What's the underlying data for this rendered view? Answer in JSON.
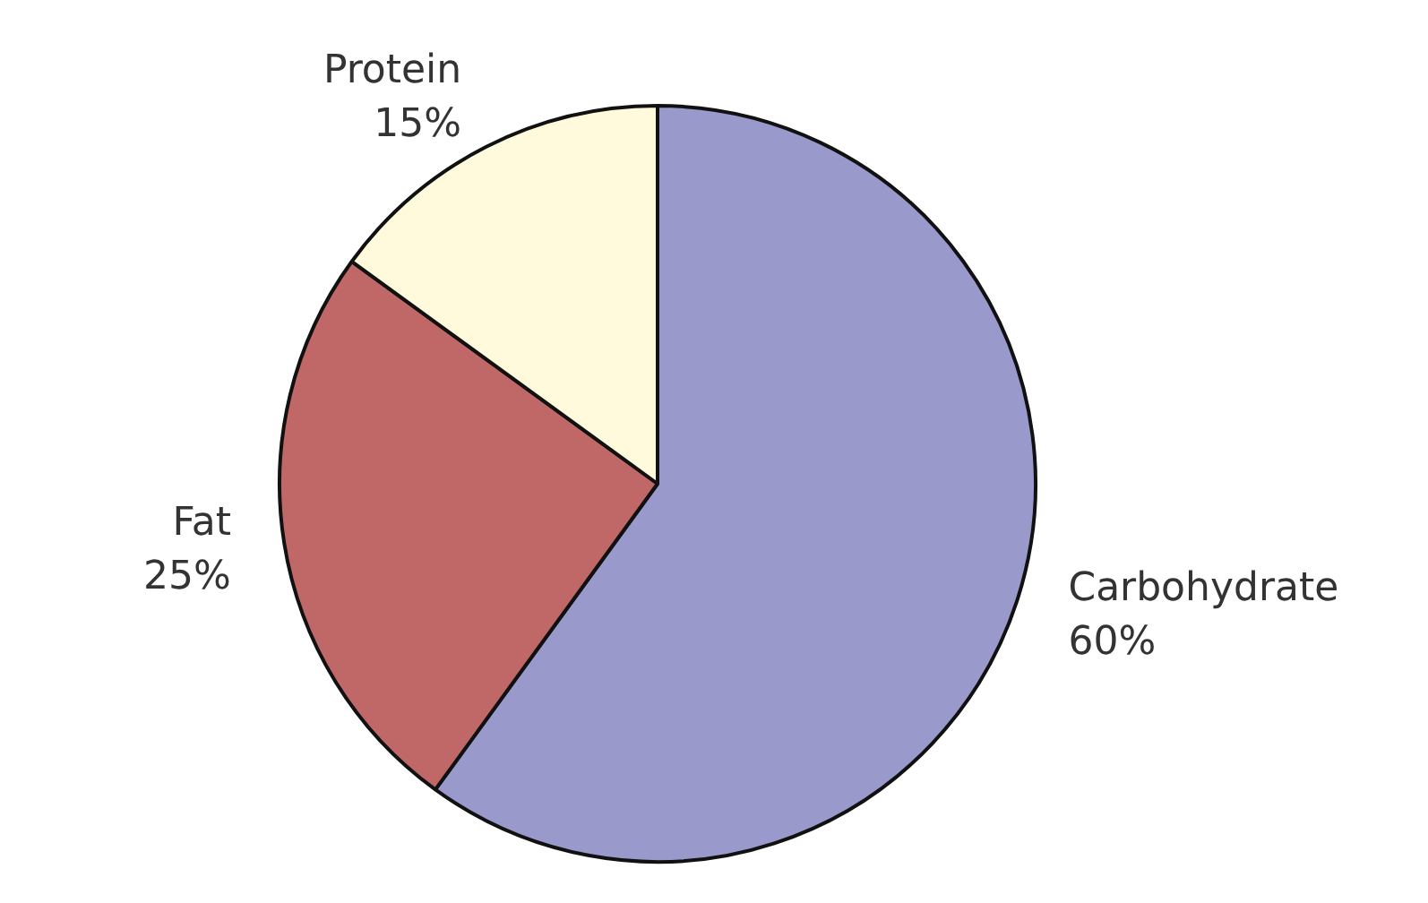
{
  "chart_data": {
    "type": "pie",
    "categories": [
      "Carbohydrate",
      "Fat",
      "Protein"
    ],
    "values": [
      60,
      25,
      15
    ],
    "value_labels": [
      "60%",
      "25%",
      "15%"
    ],
    "colors": [
      "#9999cc",
      "#c06868",
      "#fffadc"
    ],
    "legend": false
  }
}
